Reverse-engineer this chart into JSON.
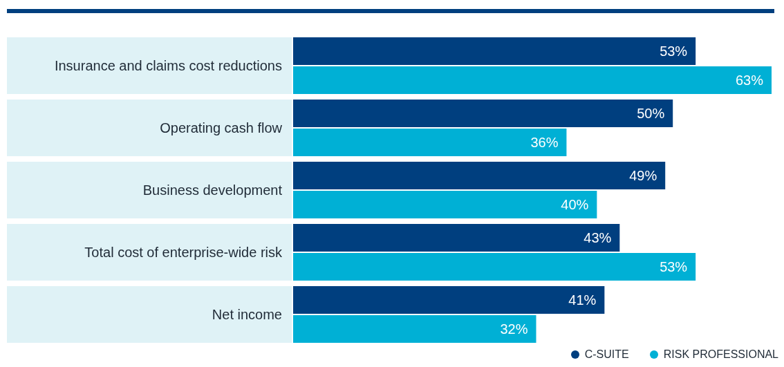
{
  "chart_data": {
    "type": "bar",
    "orientation": "horizontal",
    "categories": [
      "Insurance and claims cost reductions",
      "Operating cash flow",
      "Business development",
      "Total cost of enterprise-wide risk",
      "Net income"
    ],
    "series": [
      {
        "name": "C-SUITE",
        "color": "#003f7f",
        "values": [
          53,
          50,
          49,
          43,
          41
        ],
        "value_labels": [
          "53%",
          "50%",
          "49%",
          "43%",
          "41%"
        ]
      },
      {
        "name": "RISK PROFESSIONAL",
        "color": "#00b0d5",
        "values": [
          63,
          36,
          40,
          53,
          32
        ],
        "value_labels": [
          "63%",
          "36%",
          "40%",
          "53%",
          "32%"
        ]
      }
    ],
    "legend": "bottom right"
  }
}
